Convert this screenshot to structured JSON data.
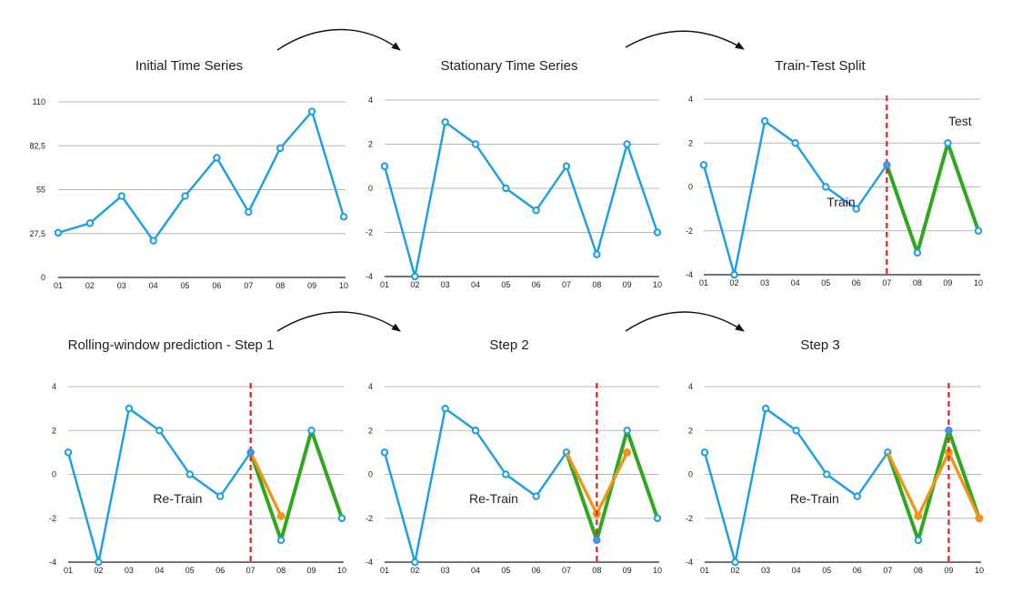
{
  "colors": {
    "series": "#1a9ee8",
    "test": "#2ea81c",
    "prediction": "#f0951c",
    "split_line": "#e02020",
    "grid": "#b8b8b8",
    "axis": "#222222",
    "arrow": "#111111"
  },
  "chart_data": [
    {
      "type": "line",
      "title": "Initial Time Series",
      "x": [
        "01",
        "02",
        "03",
        "04",
        "05",
        "06",
        "07",
        "08",
        "09",
        "10"
      ],
      "yticks": [
        "0",
        "27,5",
        "55",
        "82,5",
        "110"
      ],
      "ylim": [
        0,
        110
      ],
      "series": [
        {
          "values": [
            28,
            34,
            51,
            23,
            51,
            75,
            41,
            81,
            104,
            38
          ]
        }
      ],
      "annotations": []
    },
    {
      "type": "line",
      "title": "Stationary Time Series",
      "x": [
        "01",
        "02",
        "03",
        "04",
        "05",
        "06",
        "07",
        "08",
        "09",
        "10"
      ],
      "yticks": [
        "-4",
        "-2",
        "0",
        "2",
        "4"
      ],
      "ylim": [
        -4,
        4
      ],
      "series": [
        {
          "values": [
            1,
            -4,
            3,
            2,
            0,
            -1,
            1,
            -3,
            2,
            -2
          ]
        }
      ],
      "annotations": []
    },
    {
      "type": "line",
      "title": "Train-Test Split",
      "x": [
        "01",
        "02",
        "03",
        "04",
        "05",
        "06",
        "07",
        "08",
        "09",
        "10"
      ],
      "yticks": [
        "-4",
        "-2",
        "0",
        "2",
        "4"
      ],
      "ylim": [
        -4,
        4
      ],
      "series": [
        {
          "values": [
            1,
            -4,
            3,
            2,
            0,
            -1,
            1,
            -3,
            2,
            -2
          ]
        }
      ],
      "test_segment": {
        "x": [
          "07",
          "08",
          "09",
          "10"
        ],
        "values": [
          1,
          -3,
          2,
          -2
        ]
      },
      "split_at": "07",
      "annotations": [
        {
          "text": "Train",
          "x": 4.5,
          "y": -0.9
        },
        {
          "text": "Test",
          "x": 8.4,
          "y": 2.8
        }
      ]
    },
    {
      "type": "line",
      "title": "Rolling-window prediction  - Step 1",
      "x": [
        "01",
        "02",
        "03",
        "04",
        "05",
        "06",
        "07",
        "08",
        "09",
        "10"
      ],
      "yticks": [
        "-4",
        "-2",
        "0",
        "2",
        "4"
      ],
      "ylim": [
        -4,
        4
      ],
      "series": [
        {
          "values": [
            1,
            -4,
            3,
            2,
            0,
            -1,
            1,
            -3,
            2,
            -2
          ]
        }
      ],
      "test_segment": {
        "x": [
          "07",
          "08",
          "09",
          "10"
        ],
        "values": [
          1,
          -3,
          2,
          -2
        ]
      },
      "prediction": {
        "x": [
          "07",
          "08"
        ],
        "values": [
          1,
          -1.9
        ]
      },
      "split_at": "07",
      "annotations": [
        {
          "text": "Re-Train",
          "x": 3.6,
          "y": -1.3
        }
      ]
    },
    {
      "type": "line",
      "title": "Step 2",
      "x": [
        "01",
        "02",
        "03",
        "04",
        "05",
        "06",
        "07",
        "08",
        "09",
        "10"
      ],
      "yticks": [
        "-4",
        "-2",
        "0",
        "2",
        "4"
      ],
      "ylim": [
        -4,
        4
      ],
      "series": [
        {
          "values": [
            1,
            -4,
            3,
            2,
            0,
            -1,
            1,
            -3,
            2,
            -2
          ]
        }
      ],
      "test_segment": {
        "x": [
          "07",
          "08",
          "09",
          "10"
        ],
        "values": [
          1,
          -3,
          2,
          -2
        ]
      },
      "prediction": {
        "x": [
          "07",
          "08",
          "09"
        ],
        "values": [
          1,
          -1.8,
          1
        ]
      },
      "split_at": "08",
      "annotations": [
        {
          "text": "Re-Train",
          "x": 3.6,
          "y": -1.3
        }
      ]
    },
    {
      "type": "line",
      "title": "Step 3",
      "x": [
        "01",
        "02",
        "03",
        "04",
        "05",
        "06",
        "07",
        "08",
        "09",
        "10"
      ],
      "yticks": [
        "-4",
        "-2",
        "0",
        "2",
        "4"
      ],
      "ylim": [
        -4,
        4
      ],
      "series": [
        {
          "values": [
            1,
            -4,
            3,
            2,
            0,
            -1,
            1,
            -3,
            2,
            -2
          ]
        }
      ],
      "test_segment": {
        "x": [
          "07",
          "08",
          "09",
          "10"
        ],
        "values": [
          1,
          -3,
          2,
          -2
        ]
      },
      "prediction": {
        "x": [
          "07",
          "08",
          "09",
          "10"
        ],
        "values": [
          1,
          -1.9,
          1,
          -2
        ]
      },
      "split_at": "09",
      "annotations": [
        {
          "text": "Re-Train",
          "x": 3.6,
          "y": -1.3
        }
      ]
    }
  ]
}
